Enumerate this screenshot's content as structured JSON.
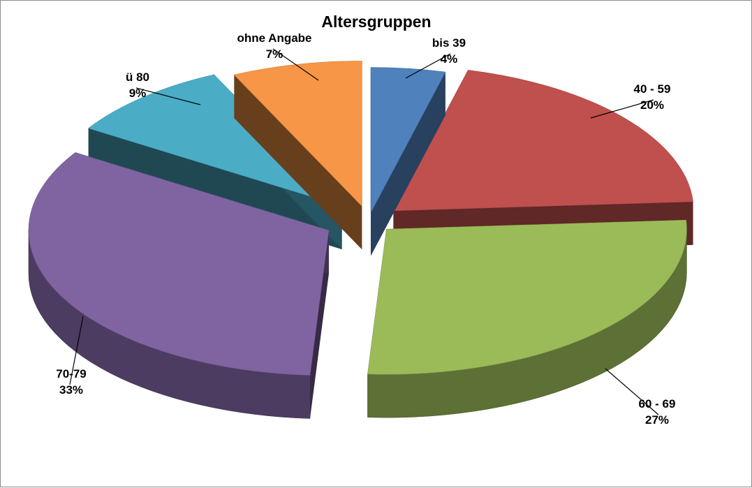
{
  "chart_data": {
    "type": "pie",
    "title": "Altersgruppen",
    "slices": [
      {
        "name": "bis 39",
        "value": 4,
        "label": "4%",
        "color": "#4f81bd"
      },
      {
        "name": "40 - 59",
        "value": 20,
        "label": "20%",
        "color": "#c0504d"
      },
      {
        "name": "60 - 69",
        "value": 27,
        "label": "27%",
        "color": "#9bbb59"
      },
      {
        "name": "70-79",
        "value": 33,
        "label": "33%",
        "color": "#8064a2"
      },
      {
        "name": "ü 80",
        "value": 9,
        "label": "9%",
        "color": "#4bacc6"
      },
      {
        "name": "ohne Angabe",
        "value": 7,
        "label": "7%",
        "color": "#f79646"
      }
    ],
    "style": "3D exploded pie",
    "legend": "none"
  }
}
